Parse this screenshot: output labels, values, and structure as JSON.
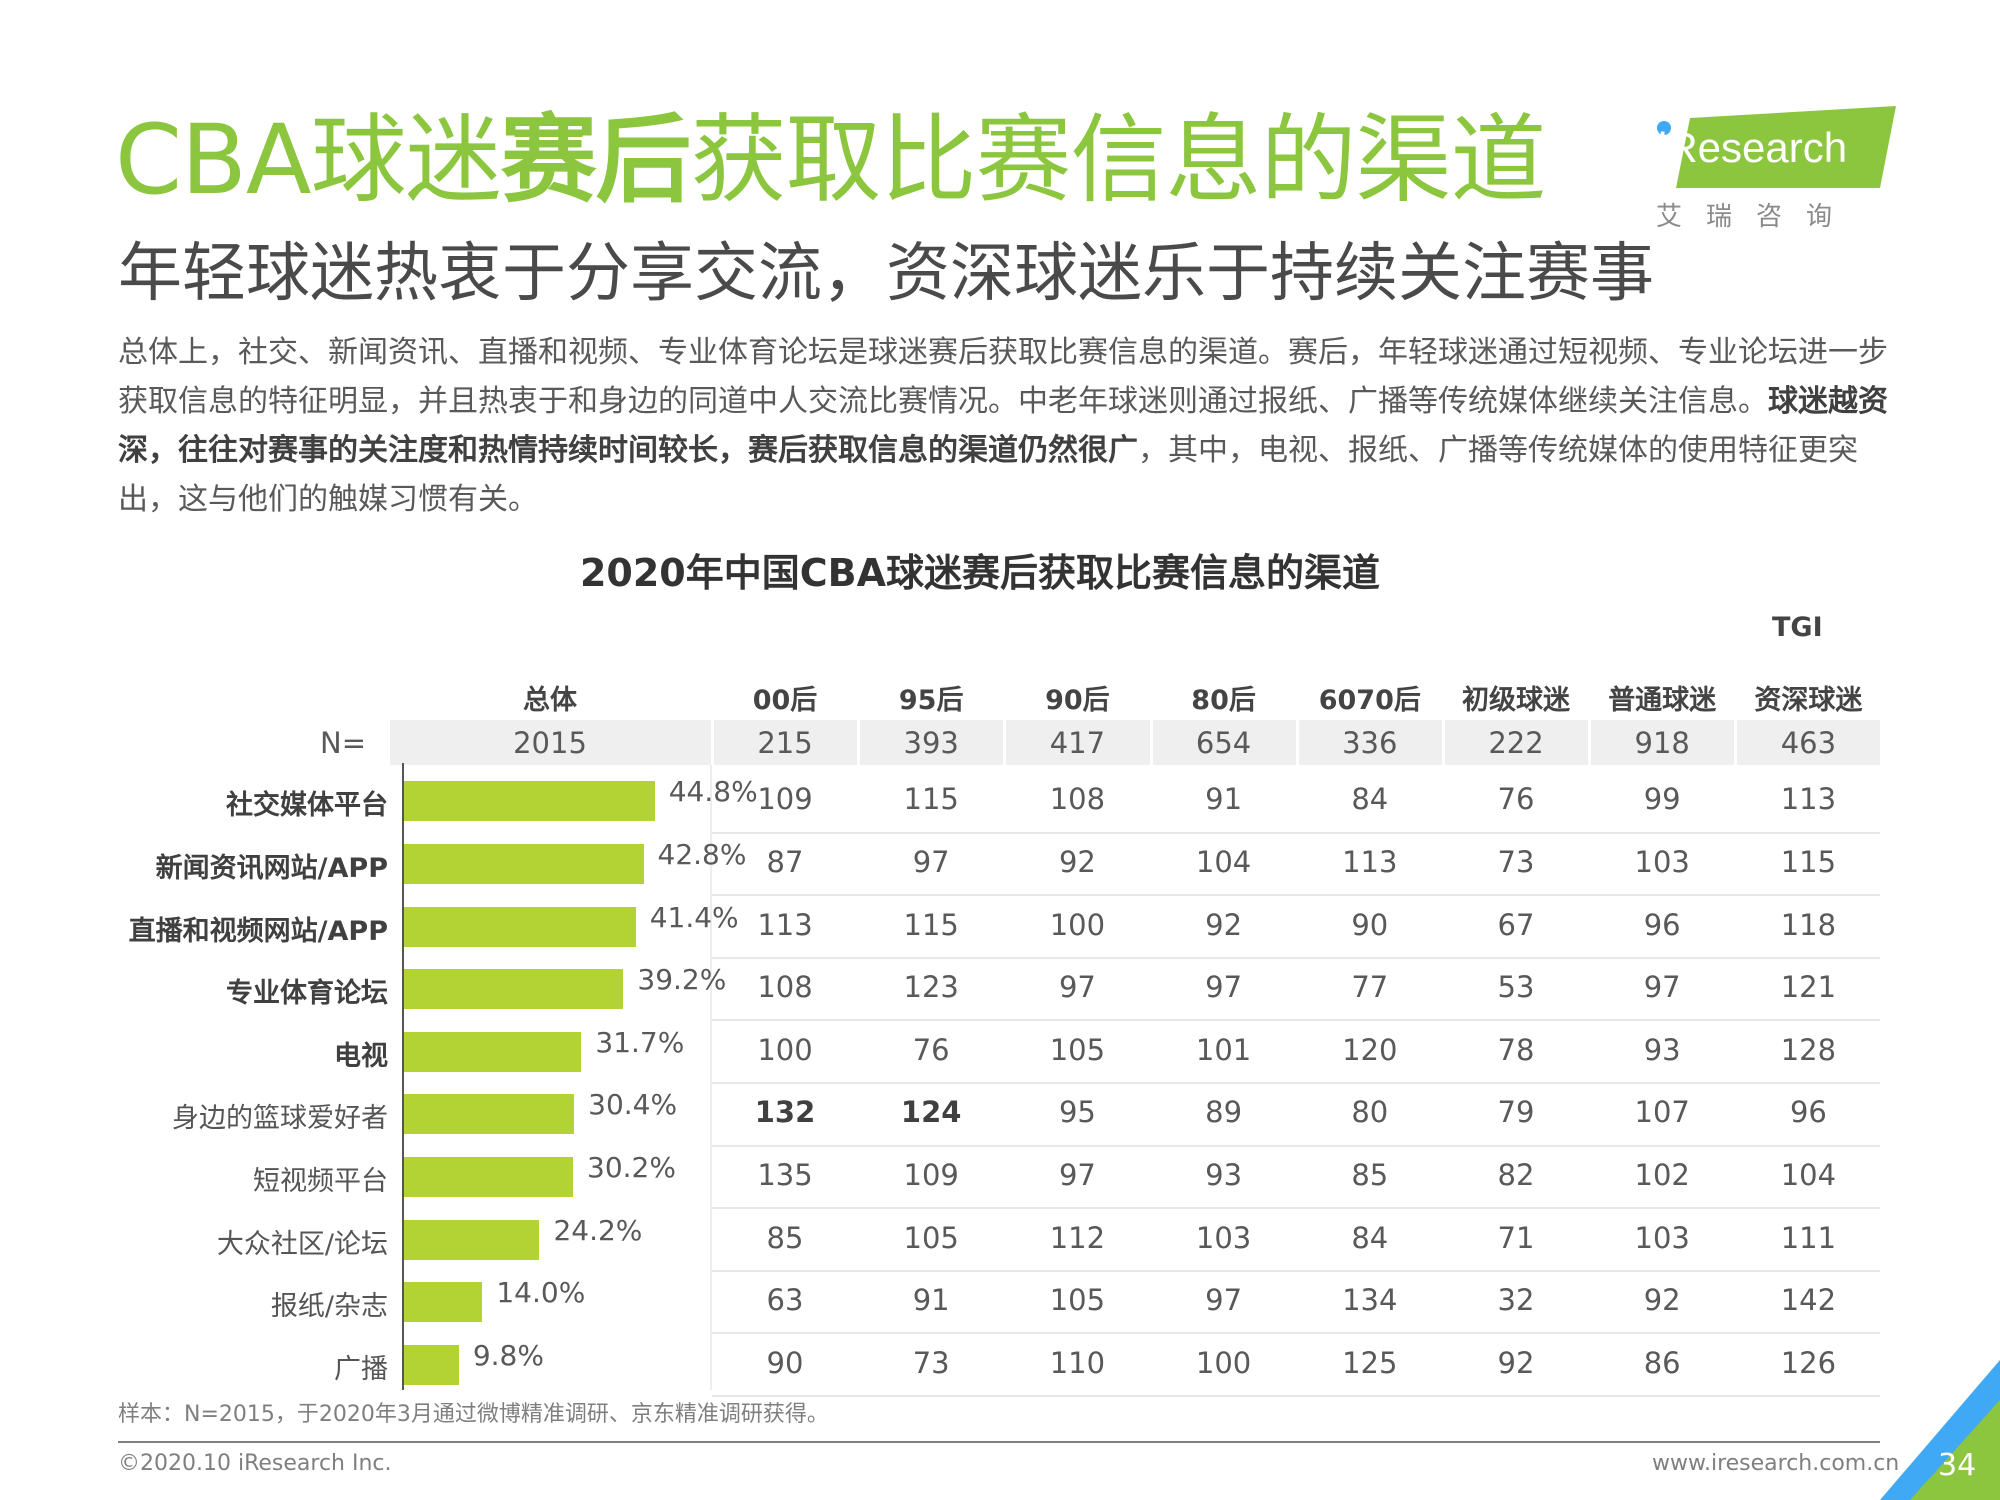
{
  "header": {
    "title_pre": "CBA球迷",
    "title_bold": "赛后",
    "title_post": "获取比赛信息的渠道",
    "subtitle": "年轻球迷热衷于分享交流，资深球迷乐于持续关注赛事",
    "body_part1": "总体上，社交、新闻资讯、直播和视频、专业体育论坛是球迷赛后获取比赛信息的渠道。赛后，年轻球迷通过短视频、专业论坛进一步获取信息的特征明显，并且热衷于和身边的同道中人交流比赛情况。中老年球迷则通过报纸、广播等传统媒体继续关注信息。",
    "body_bold": "球迷越资深，往往对赛事的关注度和热情持续时间较长，赛后获取信息的渠道仍然很广",
    "body_part2": "，其中，电视、报纸、广播等传统媒体的使用特征更突出，这与他们的触媒习惯有关。"
  },
  "logo": {
    "brand_text": "iResearch",
    "cn_text": "艾瑞咨询",
    "brand_color": "#8CC63F"
  },
  "chart_data": {
    "type": "bar",
    "title": "2020年中国CBA球迷赛后获取比赛信息的渠道",
    "tgi_label": "TGI",
    "overall_header": "总体",
    "n_label": "N=",
    "overall_n": "2015",
    "categories": [
      "社交媒体平台",
      "新闻资讯网站/APP",
      "直播和视频网站/APP",
      "专业体育论坛",
      "电视",
      "身边的篮球爱好者",
      "短视频平台",
      "大众社区/论坛",
      "报纸/杂志",
      "广播"
    ],
    "bold_categories": [
      true,
      true,
      true,
      true,
      true,
      false,
      false,
      false,
      false,
      false
    ],
    "values": [
      44.8,
      42.8,
      41.4,
      39.2,
      31.7,
      30.4,
      30.2,
      24.2,
      14.0,
      9.8
    ],
    "value_labels": [
      "44.8%",
      "42.8%",
      "41.4%",
      "39.2%",
      "31.7%",
      "30.4%",
      "30.2%",
      "24.2%",
      "14.0%",
      "9.8%"
    ],
    "xlim": [
      0,
      50
    ],
    "bar_color": "#B3D234",
    "tgi": {
      "segments": [
        "00后",
        "95后",
        "90后",
        "80后",
        "6070后",
        "初级球迷",
        "普通球迷",
        "资深球迷"
      ],
      "n": [
        "215",
        "393",
        "417",
        "654",
        "336",
        "222",
        "918",
        "463"
      ],
      "rows": [
        [
          109,
          115,
          108,
          91,
          84,
          76,
          99,
          113
        ],
        [
          87,
          97,
          92,
          104,
          113,
          73,
          103,
          115
        ],
        [
          113,
          115,
          100,
          92,
          90,
          67,
          96,
          118
        ],
        [
          108,
          123,
          97,
          97,
          77,
          53,
          97,
          121
        ],
        [
          100,
          76,
          105,
          101,
          120,
          78,
          93,
          128
        ],
        [
          132,
          124,
          95,
          89,
          80,
          79,
          107,
          96
        ],
        [
          135,
          109,
          97,
          93,
          85,
          82,
          102,
          104
        ],
        [
          85,
          105,
          112,
          103,
          84,
          71,
          103,
          111
        ],
        [
          63,
          91,
          105,
          97,
          134,
          32,
          92,
          142
        ],
        [
          90,
          73,
          110,
          100,
          125,
          92,
          86,
          126
        ]
      ],
      "highlight": [
        [
          5,
          0
        ],
        [
          5,
          1
        ]
      ]
    }
  },
  "footer": {
    "note": "样本：N=2015，于2020年3月通过微博精准调研、京东精准调研获得。",
    "copyright": "©2020.10 iResearch Inc.",
    "website": "www.iresearch.com.cn",
    "page_number": "34",
    "accent_green": "#8CC63F",
    "accent_blue": "#3FA9F5"
  }
}
